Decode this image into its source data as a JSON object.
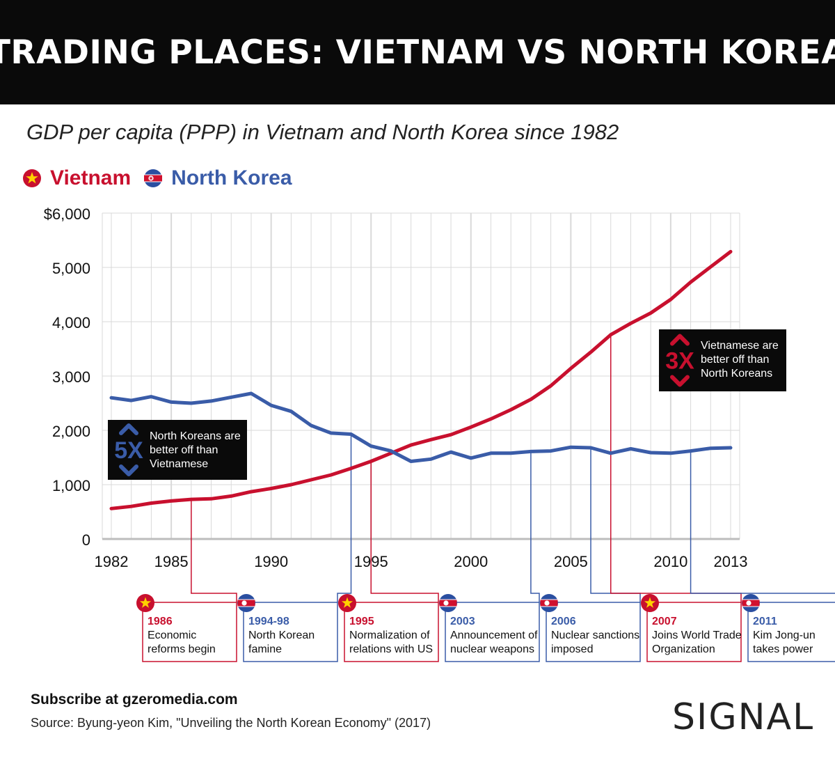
{
  "header": {
    "title": "TRADING PLACES: VIETNAM VS NORTH KOREA"
  },
  "subtitle": "GDP per capita (PPP) in Vietnam and North Korea since 1982",
  "legend": {
    "vietnam": "Vietnam",
    "north_korea": "North Korea"
  },
  "colors": {
    "vietnam": "#c8102e",
    "north_korea": "#3a5ca8",
    "grid": "#d9d9d9",
    "axis": "#bdbdbd",
    "callout_bg": "#0a0a0a"
  },
  "chart_data": {
    "type": "line",
    "xlim": [
      1982,
      2013
    ],
    "ylim": [
      0,
      6000
    ],
    "grid": true,
    "x_ticks": [
      1982,
      1985,
      1990,
      1995,
      2000,
      2005,
      2010,
      2013
    ],
    "y_ticks": [
      {
        "value": 0,
        "label": "0"
      },
      {
        "value": 1000,
        "label": "1,000"
      },
      {
        "value": 2000,
        "label": "2,000"
      },
      {
        "value": 3000,
        "label": "3,000"
      },
      {
        "value": 4000,
        "label": "4,000"
      },
      {
        "value": 5000,
        "label": "5,000"
      },
      {
        "value": 6000,
        "label": "$6,000"
      }
    ],
    "x": [
      1982,
      1983,
      1984,
      1985,
      1986,
      1987,
      1988,
      1989,
      1990,
      1991,
      1992,
      1993,
      1994,
      1995,
      1996,
      1997,
      1998,
      1999,
      2000,
      2001,
      2002,
      2003,
      2004,
      2005,
      2006,
      2007,
      2008,
      2009,
      2010,
      2011,
      2012,
      2013
    ],
    "series": [
      {
        "name": "Vietnam",
        "color_key": "vietnam",
        "values": [
          560,
          600,
          660,
          700,
          730,
          740,
          790,
          870,
          930,
          1000,
          1090,
          1180,
          1300,
          1430,
          1580,
          1730,
          1830,
          1920,
          2060,
          2210,
          2380,
          2570,
          2820,
          3140,
          3440,
          3760,
          3970,
          4160,
          4410,
          4730,
          5010,
          5290
        ]
      },
      {
        "name": "North Korea",
        "color_key": "north_korea",
        "values": [
          2600,
          2550,
          2620,
          2520,
          2500,
          2540,
          2610,
          2680,
          2460,
          2350,
          2090,
          1950,
          1930,
          1710,
          1620,
          1430,
          1470,
          1600,
          1490,
          1580,
          1580,
          1610,
          1620,
          1690,
          1680,
          1580,
          1660,
          1590,
          1580,
          1620,
          1670,
          1680
        ]
      }
    ],
    "callouts": [
      {
        "big": "5X",
        "text": [
          "North Koreans are",
          "better off  than",
          "Vietnamese"
        ],
        "color_key": "north_korea"
      },
      {
        "big": "3X",
        "text": [
          "Vietnamese are",
          "better off than",
          "North Koreans"
        ],
        "color_key": "vietnam"
      }
    ],
    "events": [
      {
        "year": 1986,
        "country": "vietnam",
        "title": "1986",
        "lines": [
          "Economic",
          "reforms begin"
        ]
      },
      {
        "year": 1994,
        "country": "north_korea",
        "title": "1994-98",
        "lines": [
          "North Korean",
          "famine"
        ]
      },
      {
        "year": 1995,
        "country": "vietnam",
        "title": "1995",
        "lines": [
          "Normalization of",
          "relations with US"
        ]
      },
      {
        "year": 2003,
        "country": "north_korea",
        "title": "2003",
        "lines": [
          "Announcement of",
          "nuclear weapons"
        ]
      },
      {
        "year": 2006,
        "country": "north_korea",
        "title": "2006",
        "lines": [
          "Nuclear sanctions",
          "imposed"
        ]
      },
      {
        "year": 2007,
        "country": "vietnam",
        "title": "2007",
        "lines": [
          "Joins World Trade",
          "Organization"
        ]
      },
      {
        "year": 2011,
        "country": "north_korea",
        "title": "2011",
        "lines": [
          "Kim Jong-un",
          "takes power"
        ]
      }
    ]
  },
  "footer": {
    "subscribe": "Subscribe at gzeromedia.com",
    "source": "Source: Byung-yeon Kim, \"Unveiling the North Korean Economy\" (2017)",
    "brand": "SIGNAL"
  }
}
